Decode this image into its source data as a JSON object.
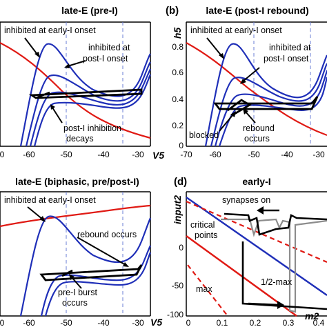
{
  "panels": [
    {
      "id": "a",
      "label": "",
      "title": "late-E (pre-I)",
      "xlabel": "V5",
      "xticks": [
        "0",
        "-60",
        "-50",
        "-40",
        "-30"
      ],
      "annotations": [
        "inhibited at early-I onset",
        "inhibited at",
        "post-I onset",
        "post-I inhibition",
        "decays"
      ]
    },
    {
      "id": "b",
      "label": "(b)",
      "title": "late-E (post-I rebound)",
      "xlabel": "V5",
      "ylabel": "h5",
      "xticks": [
        "-70",
        "-60",
        "-50",
        "-40",
        "-30"
      ],
      "yticks": [
        "0.8",
        "0.6",
        "0.4",
        "0.2",
        "0"
      ],
      "annotations": [
        "inhibited at early-I onset",
        "inhibited at",
        "post-I onset",
        "blocked",
        "rebound",
        "occurs"
      ]
    },
    {
      "id": "c",
      "label": "",
      "title": "late-E (biphasic, pre/post-I)",
      "xlabel": "V5",
      "xticks": [
        "0",
        "-60",
        "-50",
        "-40",
        "-30"
      ],
      "annotations": [
        "inhibited at early-I onset",
        "rebound occurs",
        "pre-I burst",
        "occurs"
      ]
    },
    {
      "id": "d",
      "label": "(d)",
      "title": "early-I",
      "xlabel": "m2",
      "ylabel": "input2",
      "xticks": [
        "0",
        "0.1",
        "0.2",
        "0.3",
        "0.4"
      ],
      "yticks": [
        "0",
        "-50",
        "-100"
      ],
      "annotations": [
        "synapses on",
        "critical",
        "points",
        "max",
        "1/2-max"
      ]
    }
  ],
  "colors": {
    "nullcline_blue": "#1f2fb8",
    "nullcline_red": "#e01a14",
    "trajectory": "#000000",
    "gray_trace": "#8c8c8c",
    "dashed_line": "#6a7cd6"
  }
}
